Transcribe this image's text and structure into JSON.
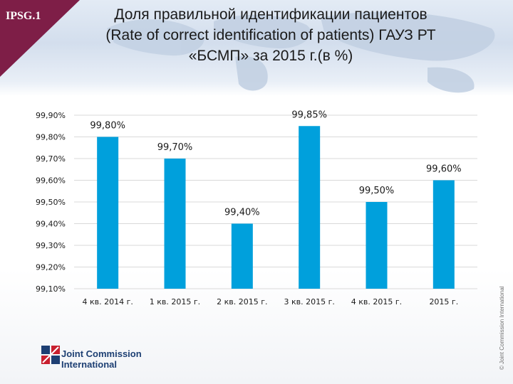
{
  "badge": "IPSG.1",
  "title_lines": [
    "Доля правильной идентификации пациентов",
    "(Rate of correct identification of patients) ГАУЗ РТ",
    "«БСМП» за 2015 г.(в %)"
  ],
  "chart_data": {
    "type": "bar",
    "categories": [
      "4 кв. 2014 г.",
      "1 кв. 2015 г.",
      "2 кв. 2015 г.",
      "3 кв. 2015 г.",
      "4 кв. 2015 г.",
      "2015 г."
    ],
    "values": [
      99.8,
      99.7,
      99.4,
      99.85,
      99.5,
      99.6
    ],
    "value_labels": [
      "99,80%",
      "99,70%",
      "99,40%",
      "99,85%",
      "99,50%",
      "99,60%"
    ],
    "y_ticks": [
      "99,10%",
      "99,20%",
      "99,30%",
      "99,40%",
      "99,50%",
      "99,60%",
      "99,70%",
      "99,80%",
      "99,90%"
    ],
    "ylim": [
      99.1,
      99.9
    ],
    "grid": true,
    "bar_color": "#00a0dc",
    "label_color": "#1a1a1a"
  },
  "logo": {
    "line1": "Joint Commission",
    "line2": "International"
  },
  "copyright": "© Joint Commission International",
  "colors": {
    "ribbon": "#7e1e47",
    "logo_text": "#1d3f73",
    "logo_red": "#c8202f"
  }
}
